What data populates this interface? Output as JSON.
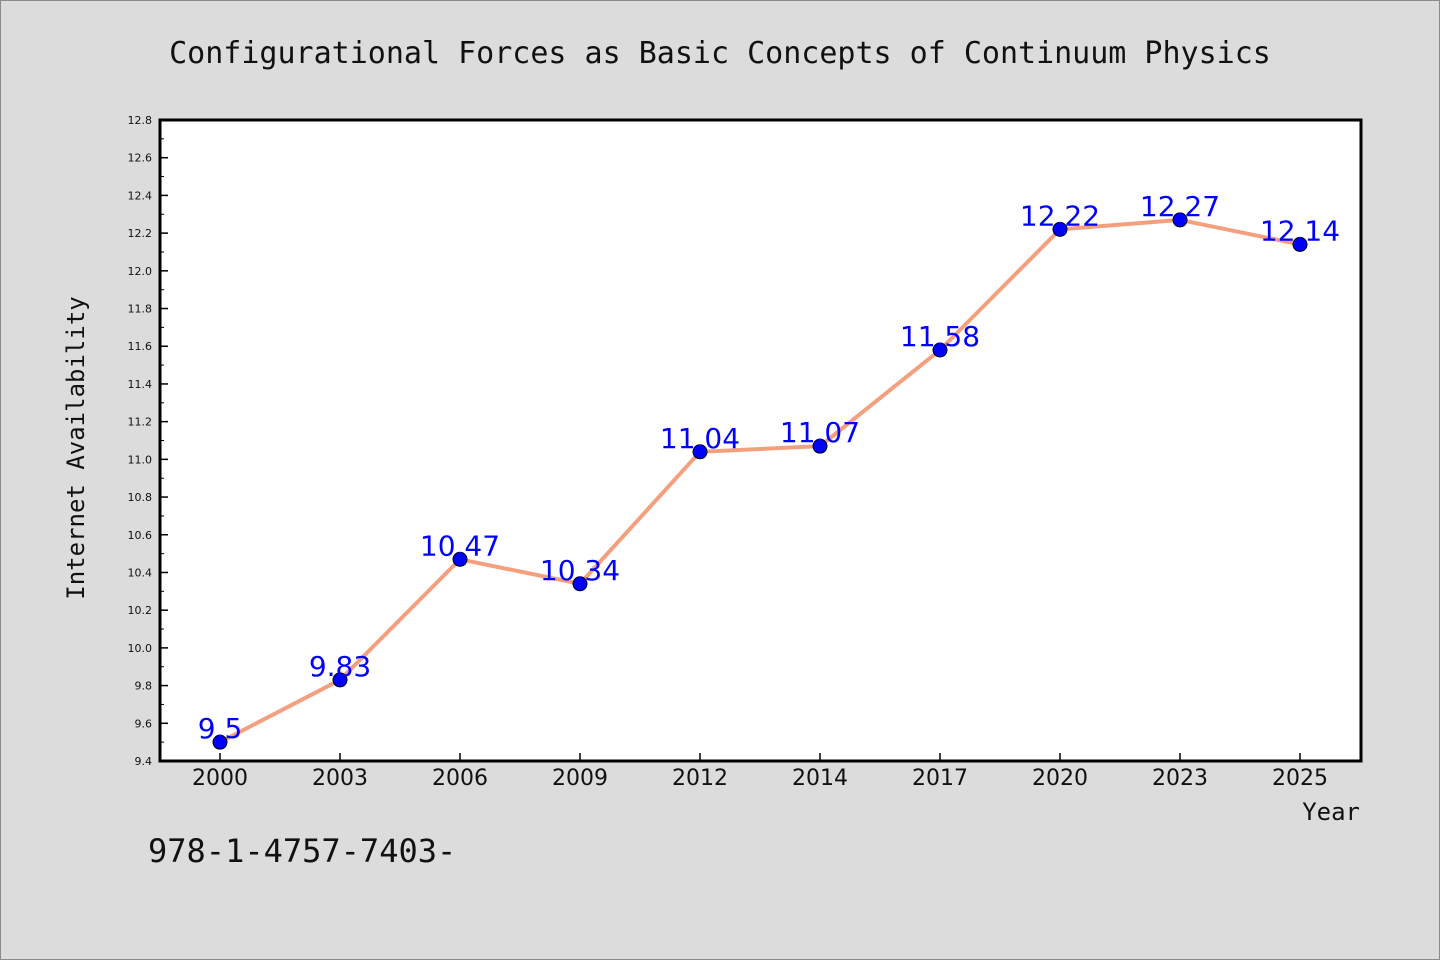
{
  "chart_data": {
    "type": "line",
    "title": "Configurational Forces as Basic Concepts of Continuum Physics",
    "xlabel": "Year",
    "ylabel": "Internet Availability",
    "categories": [
      "2000",
      "2003",
      "2006",
      "2009",
      "2012",
      "2014",
      "2017",
      "2020",
      "2023",
      "2025"
    ],
    "series": [
      {
        "values": [
          9.5,
          9.83,
          10.47,
          10.34,
          11.04,
          11.07,
          11.58,
          12.22,
          12.27,
          12.14
        ],
        "labels": [
          "9.5",
          "9.83",
          "10.47",
          "10.34",
          "11.04",
          "11.07",
          "11.58",
          "12.22",
          "12.27",
          "12.14"
        ],
        "line_color": "#f4a07f",
        "marker_color": "#0000ff"
      }
    ],
    "ylim": [
      9.4,
      12.8
    ],
    "yticks": [
      "9.4",
      "9.6",
      "9.8",
      "10.0",
      "10.2",
      "10.4",
      "10.6",
      "10.8",
      "11.0",
      "11.2",
      "11.4",
      "11.6",
      "11.8",
      "12.0",
      "12.2",
      "12.4",
      "12.6",
      "12.8"
    ],
    "grid": false,
    "legend": "none",
    "label_color": "#0000ff"
  },
  "footer_text": "978-1-4757-7403-"
}
